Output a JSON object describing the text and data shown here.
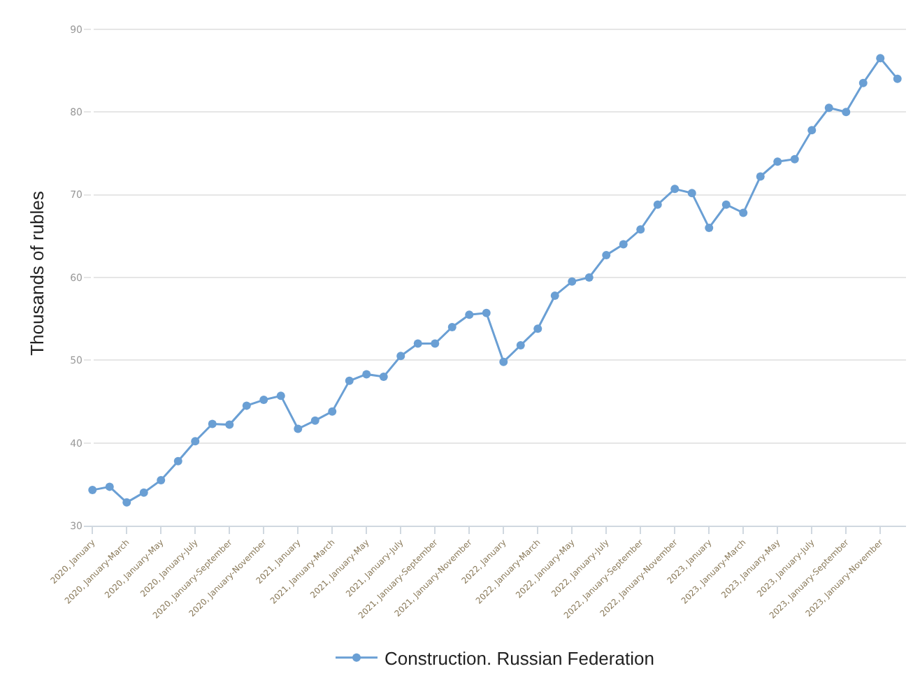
{
  "chart_data": {
    "type": "line",
    "ylabel": "Thousands of rubles",
    "categories": [
      "2020, January",
      null,
      "2020, January-March",
      null,
      "2020, January-May",
      null,
      "2020, January-July",
      null,
      "2020, January-September",
      null,
      "2020, January-November",
      null,
      "2021, January",
      null,
      "2021, January-March",
      null,
      "2021, January-May",
      null,
      "2021, January-July",
      null,
      "2021, January-September",
      null,
      "2021, January-November",
      null,
      "2022, January",
      null,
      "2022, January-March",
      null,
      "2022, January-May",
      null,
      "2022, January-July",
      null,
      "2022, January-September",
      null,
      "2022, January-November",
      null,
      "2023, January",
      null,
      "2023, January-March",
      null,
      "2023, January-May",
      null,
      "2023, January-July",
      null,
      "2023, January-September",
      null,
      "2023, January-November",
      null
    ],
    "series": [
      {
        "name": "Construction. Russian Federation",
        "color": "#6a9fd4",
        "values": [
          34.3,
          34.7,
          32.8,
          34.0,
          35.5,
          37.8,
          40.2,
          42.3,
          42.2,
          44.5,
          45.2,
          45.7,
          41.7,
          42.7,
          43.8,
          47.5,
          48.3,
          48.0,
          50.5,
          52.0,
          52.0,
          54.0,
          55.5,
          55.7,
          49.8,
          51.8,
          53.8,
          57.8,
          59.5,
          60.0,
          62.7,
          64.0,
          65.8,
          68.8,
          70.7,
          70.2,
          66.0,
          68.8,
          67.8,
          72.2,
          74.0,
          74.3,
          77.8,
          80.5,
          80.0,
          83.5,
          86.5,
          84.0
        ]
      }
    ],
    "ylim": [
      30,
      91
    ],
    "yticks": [
      30,
      40,
      50,
      60,
      70,
      80,
      90
    ],
    "grid": "y",
    "legend": "bottom",
    "marker": "circle",
    "line_style": "solid"
  }
}
